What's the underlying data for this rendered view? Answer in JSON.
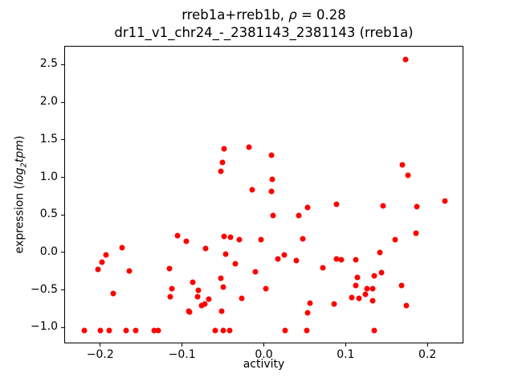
{
  "figure": {
    "title_line1_prefix": "rreb1a+rreb1b, ",
    "title_line1_rho": "ρ",
    "title_line1_eq": " = 0.28",
    "title_line2": "dr11_v1_chr24_-_2381143_2381143 (rreb1a)",
    "xlabel": "activity",
    "ylabel_prefix": "expression (",
    "ylabel_log": "log",
    "ylabel_sub": "2",
    "ylabel_tpm": "tpm",
    "ylabel_close": ")"
  },
  "chart_data": {
    "type": "scatter",
    "title": "rreb1a+rreb1b, ρ = 0.28",
    "subtitle": "dr11_v1_chr24_-_2381143_2381143 (rreb1a)",
    "xlabel": "activity",
    "ylabel": "expression (log2 tpm)",
    "correlation_rho": 0.28,
    "marker_color": "#ff0000",
    "axis_color": "#000000",
    "grid": false,
    "legend": false,
    "xlim": [
      -0.244,
      0.244
    ],
    "ylim": [
      -1.21,
      2.75
    ],
    "xticks": [
      -0.2,
      -0.1,
      0.0,
      0.1,
      0.2
    ],
    "xtick_labels": [
      "−0.2",
      "−0.1",
      "0.0",
      "0.1",
      "0.2"
    ],
    "yticks": [
      -1.0,
      -0.5,
      0.0,
      0.5,
      1.0,
      1.5,
      2.0,
      2.5
    ],
    "ytick_labels": [
      "−1.0",
      "−0.5",
      "0.0",
      "0.5",
      "1.0",
      "1.5",
      "2.0",
      "2.5"
    ],
    "points": [
      [
        -0.05,
        1.39
      ],
      [
        -0.019,
        1.41
      ],
      [
        -0.052,
        1.21
      ],
      [
        0.008,
        1.31
      ],
      [
        -0.054,
        1.09
      ],
      [
        0.009,
        0.98
      ],
      [
        -0.015,
        0.85
      ],
      [
        0.008,
        0.82
      ],
      [
        0.172,
        2.58
      ],
      [
        0.168,
        1.18
      ],
      [
        0.175,
        1.04
      ],
      [
        -0.107,
        0.24
      ],
      [
        -0.096,
        0.16
      ],
      [
        -0.174,
        0.07
      ],
      [
        -0.194,
        -0.02
      ],
      [
        -0.199,
        -0.12
      ],
      [
        -0.204,
        -0.21
      ],
      [
        -0.165,
        -0.24
      ],
      [
        -0.116,
        -0.2
      ],
      [
        -0.185,
        -0.54
      ],
      [
        -0.113,
        -0.47
      ],
      [
        -0.115,
        -0.58
      ],
      [
        -0.093,
        -0.77
      ],
      [
        -0.22,
        -1.03
      ],
      [
        -0.201,
        -1.03
      ],
      [
        -0.19,
        -1.03
      ],
      [
        -0.169,
        -1.03
      ],
      [
        -0.158,
        -1.03
      ],
      [
        -0.135,
        -1.03
      ],
      [
        -0.13,
        -1.03
      ],
      [
        -0.06,
        -1.03
      ],
      [
        -0.051,
        -1.03
      ],
      [
        -0.043,
        -1.03
      ],
      [
        0.025,
        -1.03
      ],
      [
        0.052,
        -1.03
      ],
      [
        0.134,
        -1.03
      ],
      [
        0.01,
        0.5
      ],
      [
        0.042,
        0.5
      ],
      [
        0.053,
        0.61
      ],
      [
        -0.05,
        0.22
      ],
      [
        -0.042,
        0.21
      ],
      [
        -0.031,
        0.18
      ],
      [
        -0.004,
        0.18
      ],
      [
        0.047,
        0.19
      ],
      [
        -0.072,
        0.06
      ],
      [
        -0.048,
        -0.01
      ],
      [
        0.016,
        -0.08
      ],
      [
        0.024,
        -0.02
      ],
      [
        0.039,
        -0.1
      ],
      [
        -0.036,
        -0.14
      ],
      [
        0.071,
        -0.19
      ],
      [
        -0.011,
        -0.25
      ],
      [
        0.001,
        -0.47
      ],
      [
        -0.028,
        -0.6
      ],
      [
        -0.053,
        -0.77
      ],
      [
        0.055,
        -0.66
      ],
      [
        0.053,
        -0.79
      ],
      [
        -0.088,
        -0.39
      ],
      [
        -0.081,
        -0.49
      ],
      [
        -0.082,
        -0.58
      ],
      [
        -0.073,
        -0.67
      ],
      [
        -0.068,
        -0.61
      ],
      [
        -0.092,
        -0.78
      ],
      [
        -0.054,
        -0.33
      ],
      [
        -0.051,
        -0.45
      ],
      [
        -0.077,
        -0.7
      ],
      [
        0.088,
        0.65
      ],
      [
        0.145,
        0.63
      ],
      [
        0.186,
        0.62
      ],
      [
        0.22,
        0.7
      ],
      [
        0.185,
        0.27
      ],
      [
        0.16,
        0.18
      ],
      [
        0.141,
        0.01
      ],
      [
        0.088,
        -0.08
      ],
      [
        0.094,
        -0.09
      ],
      [
        0.111,
        -0.09
      ],
      [
        0.113,
        -0.32
      ],
      [
        0.134,
        -0.3
      ],
      [
        0.143,
        -0.26
      ],
      [
        0.111,
        -0.43
      ],
      [
        0.125,
        -0.47
      ],
      [
        0.132,
        -0.47
      ],
      [
        0.123,
        -0.55
      ],
      [
        0.107,
        -0.59
      ],
      [
        0.115,
        -0.6
      ],
      [
        0.132,
        -0.63
      ],
      [
        0.167,
        -0.43
      ],
      [
        0.173,
        -0.7
      ],
      [
        0.085,
        -0.68
      ]
    ]
  }
}
